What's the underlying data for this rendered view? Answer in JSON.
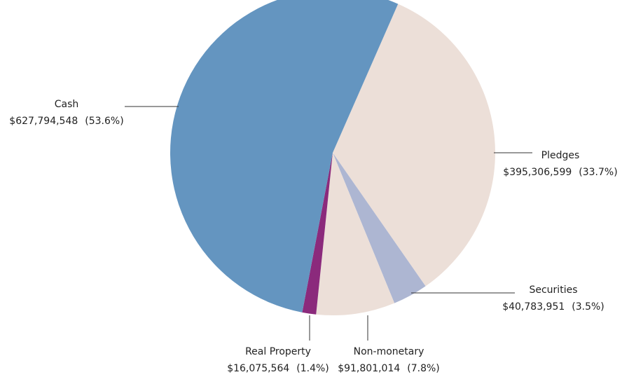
{
  "chart_data": {
    "type": "pie",
    "categories": [
      "Pledges",
      "Securities",
      "Non-monetary",
      "Real Property",
      "Cash"
    ],
    "values": [
      395306599,
      40783951,
      91801014,
      16075564,
      627794548
    ],
    "value_labels": [
      "$395,306,599",
      "$40,783,951",
      "$91,801,014",
      "$16,075,564",
      "$627,794,548"
    ],
    "percent_labels": [
      "(33.7%)",
      "(3.5%)",
      "(7.8%)",
      "(1.4%)",
      "(53.6%)"
    ],
    "colors": [
      "#ecdfd8",
      "#adb6d2",
      "#ecdfd8",
      "#8b2a7c",
      "#6495c0"
    ]
  }
}
